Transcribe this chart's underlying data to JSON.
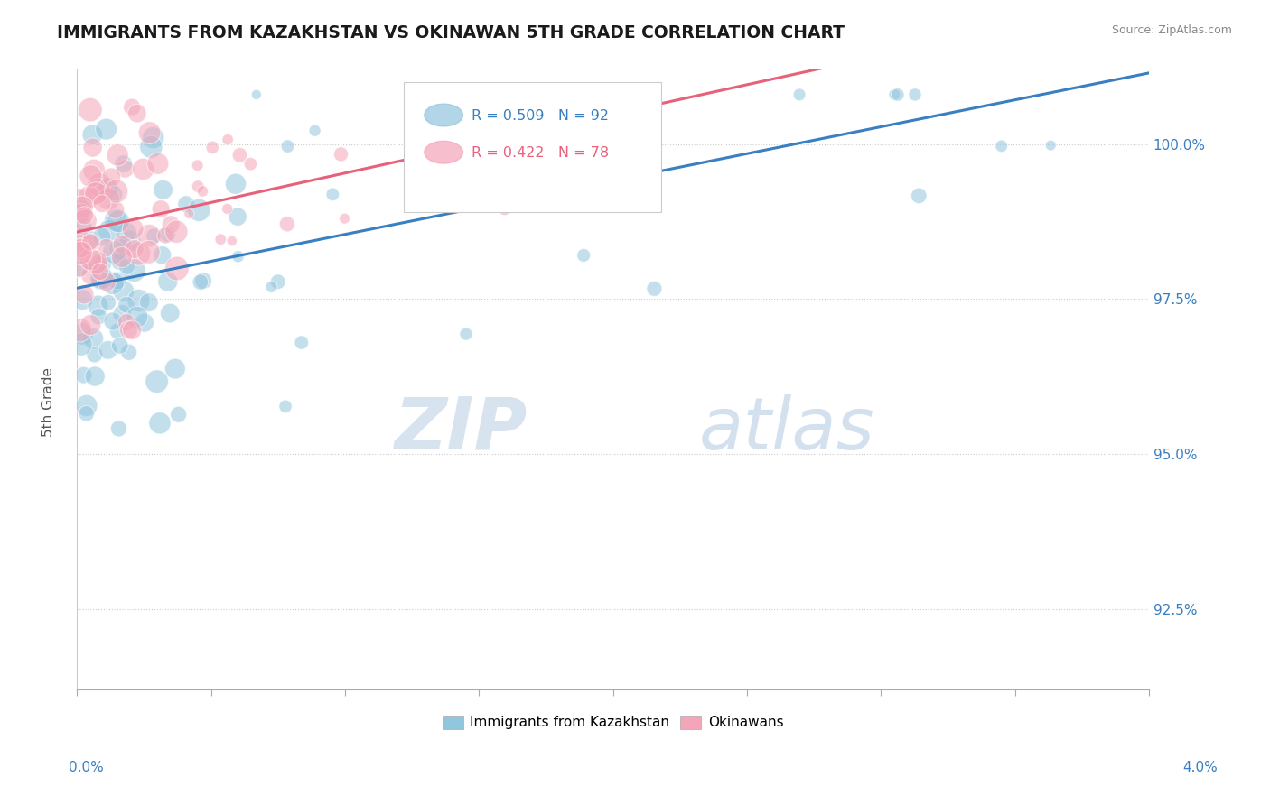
{
  "title": "IMMIGRANTS FROM KAZAKHSTAN VS OKINAWAN 5TH GRADE CORRELATION CHART",
  "source": "Source: ZipAtlas.com",
  "ylabel": "5th Grade",
  "yticks": [
    92.5,
    95.0,
    97.5,
    100.0
  ],
  "ytick_labels": [
    "92.5%",
    "95.0%",
    "97.5%",
    "100.0%"
  ],
  "xlim": [
    0.0,
    4.0
  ],
  "ylim": [
    91.2,
    101.2
  ],
  "legend1_label": "Immigrants from Kazakhstan",
  "legend2_label": "Okinawans",
  "R1": 0.509,
  "N1": 92,
  "R2": 0.422,
  "N2": 78,
  "blue_color": "#92c5de",
  "pink_color": "#f4a5b8",
  "blue_line_color": "#3a7fc1",
  "pink_line_color": "#e8607a",
  "watermark_zip": "ZIP",
  "watermark_atlas": "atlas",
  "background_color": "#ffffff"
}
